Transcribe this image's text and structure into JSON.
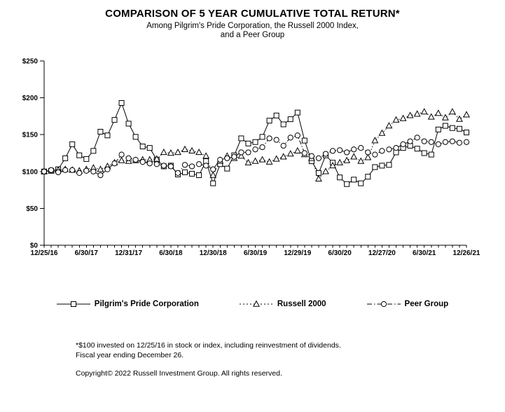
{
  "header": {
    "title": "COMPARISON OF 5 YEAR CUMULATIVE TOTAL RETURN*",
    "subtitle_line1": "Among Pilgrim's Pride Corporation, the Russell 2000 Index,",
    "subtitle_line2": "and a Peer Group"
  },
  "chart_data": {
    "type": "line",
    "title": "COMPARISON OF 5 YEAR CUMULATIVE TOTAL RETURN*",
    "frequency": "monthly",
    "total_points": 61,
    "x_axis": {
      "tick_labels": [
        "12/25/16",
        "6/30/17",
        "12/31/17",
        "6/30/18",
        "12/30/18",
        "6/30/19",
        "12/29/19",
        "6/30/20",
        "12/27/20",
        "6/30/21",
        "12/26/21"
      ],
      "points_per_label": 6
    },
    "y_axis": {
      "tick_labels": [
        "$0",
        "$50",
        "$100",
        "$150",
        "$200",
        "$250"
      ],
      "min": 0,
      "max": 250,
      "step": 50
    },
    "grid": false,
    "line_color": "#000000",
    "marker_fill": "#ffffff",
    "series": [
      {
        "name": "Pilgrim's Pride Corporation",
        "marker": "square",
        "line_style": "solid",
        "values": [
          100,
          101,
          103,
          118,
          137,
          122,
          117,
          128,
          154,
          149,
          170,
          193,
          165,
          147,
          134,
          132,
          116,
          107,
          108,
          96,
          99,
          97,
          95,
          114,
          84,
          110,
          104,
          122,
          145,
          138,
          140,
          147,
          169,
          176,
          164,
          171,
          180,
          142,
          114,
          98,
          122,
          112,
          92,
          83,
          89,
          84,
          93,
          106,
          108,
          109,
          126,
          132,
          135,
          131,
          125,
          123,
          157,
          162,
          159,
          158,
          153
        ]
      },
      {
        "name": "Russell 2000",
        "marker": "triangle",
        "line_style": "dotted",
        "values": [
          100,
          101,
          102,
          103,
          102,
          101,
          103,
          105,
          103,
          107,
          112,
          115,
          114,
          115,
          116,
          116,
          117,
          126,
          125,
          126,
          130,
          128,
          126,
          121,
          95,
          114,
          121,
          118,
          121,
          112,
          114,
          116,
          113,
          117,
          120,
          124,
          128,
          123,
          118,
          90,
          100,
          108,
          112,
          115,
          120,
          114,
          119,
          142,
          152,
          162,
          170,
          172,
          176,
          178,
          181,
          174,
          179,
          173,
          181,
          171,
          177
        ]
      },
      {
        "name": "Peer Group",
        "marker": "circle",
        "line_style": "dash-dot",
        "values": [
          100,
          102,
          99,
          102,
          102,
          98,
          101,
          100,
          95,
          103,
          111,
          123,
          118,
          116,
          113,
          111,
          110,
          108,
          107,
          98,
          109,
          107,
          110,
          108,
          103,
          116,
          118,
          120,
          126,
          126,
          130,
          133,
          145,
          143,
          135,
          146,
          149,
          125,
          121,
          118,
          124,
          128,
          129,
          126,
          130,
          132,
          126,
          123,
          128,
          130,
          132,
          137,
          141,
          146,
          141,
          140,
          137,
          140,
          141,
          139,
          140
        ]
      }
    ]
  },
  "footnotes": {
    "line1": "*$100 invested on 12/25/16 in stock or index, including reinvestment of dividends.",
    "line2": "Fiscal year ending December 26.",
    "copyright": "Copyright© 2022 Russell Investment Group. All rights reserved."
  }
}
